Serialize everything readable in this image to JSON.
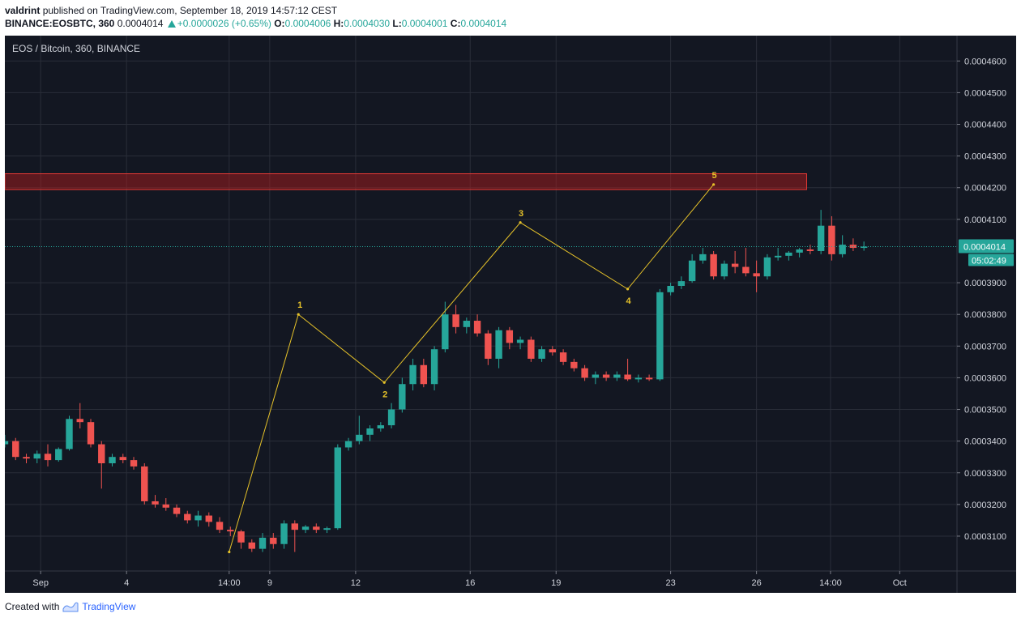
{
  "header": {
    "author": "valdrint",
    "published_text": "published on TradingView.com, September 18, 2019 14:57:12 CEST"
  },
  "quote": {
    "symbol": "BINANCE:EOSBTC, 360",
    "last": "0.0004014",
    "change": "+0.0000026 (+0.65%)",
    "o_label": "O:",
    "o_value": "0.0004006",
    "h_label": "H:",
    "h_value": "0.0004030",
    "l_label": "L:",
    "l_value": "0.0004001",
    "c_label": "C:",
    "c_value": "0.0004014"
  },
  "footer": {
    "created_with": "Created with",
    "brand": "TradingView"
  },
  "colors": {
    "background": "#131722",
    "grid": "#2a2e39",
    "up": "#26a69a",
    "down": "#ef5350",
    "wave": "#e6c229",
    "zone": "#b71c1c"
  },
  "chart_data": {
    "type": "candlestick",
    "title": "EOS / Bitcoin, 360, BINANCE",
    "x_ticks": [
      "Sep",
      "4",
      "14:00",
      "9",
      "12",
      "16",
      "19",
      "23",
      "26",
      "14:00",
      "Oct"
    ],
    "y_ticks": [
      "0.0004600",
      "0.0004500",
      "0.0004400",
      "0.0004300",
      "0.0004200",
      "0.0004100",
      "0.0003900",
      "0.0003800",
      "0.0003700",
      "0.0003600",
      "0.0003500",
      "0.0003400",
      "0.0003300",
      "0.0003200",
      "0.0003100"
    ],
    "ylim": [
      0.000299,
      0.000468
    ],
    "last_price": {
      "value": 0.0004014,
      "label": "0.0004014",
      "countdown": "05:02:49"
    },
    "resistance_zone": {
      "low": 0.0004194,
      "high": 0.0004244
    },
    "grid": true,
    "candles": [
      [
        0.000339,
        0.000342,
        0.000338,
        0.00034
      ],
      [
        0.00034,
        0.000341,
        0.000334,
        0.000335
      ],
      [
        0.000335,
        0.000336,
        0.000333,
        0.0003345
      ],
      [
        0.0003345,
        0.000337,
        0.000333,
        0.000336
      ],
      [
        0.000336,
        0.000339,
        0.000332,
        0.000334
      ],
      [
        0.000334,
        0.000338,
        0.0003335,
        0.0003375
      ],
      [
        0.0003375,
        0.000348,
        0.000337,
        0.000347
      ],
      [
        0.000347,
        0.000352,
        0.000344,
        0.000346
      ],
      [
        0.000346,
        0.000347,
        0.000338,
        0.000339
      ],
      [
        0.000339,
        0.00034,
        0.000325,
        0.000333
      ],
      [
        0.000333,
        0.000336,
        0.000332,
        0.000335
      ],
      [
        0.000335,
        0.000336,
        0.000333,
        0.000334
      ],
      [
        0.000334,
        0.000335,
        0.000331,
        0.000332
      ],
      [
        0.000332,
        0.000333,
        0.00032,
        0.000321
      ],
      [
        0.000321,
        0.000323,
        0.000319,
        0.00032
      ],
      [
        0.00032,
        0.000322,
        0.000318,
        0.000319
      ],
      [
        0.000319,
        0.00032,
        0.000316,
        0.000317
      ],
      [
        0.000317,
        0.000318,
        0.000314,
        0.000315
      ],
      [
        0.000315,
        0.000318,
        0.000313,
        0.0003165
      ],
      [
        0.0003165,
        0.0003175,
        0.000313,
        0.0003145
      ],
      [
        0.0003145,
        0.000316,
        0.000311,
        0.000312
      ],
      [
        0.000312,
        0.000313,
        0.00031,
        0.0003115
      ],
      [
        0.0003115,
        0.000312,
        0.000306,
        0.000308
      ],
      [
        0.000308,
        0.000309,
        0.000305,
        0.000306
      ],
      [
        0.000306,
        0.000311,
        0.000305,
        0.0003095
      ],
      [
        0.0003095,
        0.000311,
        0.000306,
        0.0003075
      ],
      [
        0.0003075,
        0.000315,
        0.000306,
        0.000314
      ],
      [
        0.000314,
        0.000315,
        0.000305,
        0.000312
      ],
      [
        0.000312,
        0.0003135,
        0.000311,
        0.000313
      ],
      [
        0.000313,
        0.000314,
        0.000311,
        0.000312
      ],
      [
        0.000312,
        0.000313,
        0.000311,
        0.0003125
      ],
      [
        0.0003125,
        0.000339,
        0.000312,
        0.000338
      ],
      [
        0.000338,
        0.000341,
        0.000337,
        0.00034
      ],
      [
        0.00034,
        0.000348,
        0.000339,
        0.000342
      ],
      [
        0.000342,
        0.000345,
        0.00034,
        0.000344
      ],
      [
        0.000344,
        0.000346,
        0.000343,
        0.000345
      ],
      [
        0.000345,
        0.000352,
        0.000344,
        0.00035
      ],
      [
        0.00035,
        0.00036,
        0.000349,
        0.000358
      ],
      [
        0.000358,
        0.000366,
        0.000356,
        0.000364
      ],
      [
        0.000364,
        0.000366,
        0.000357,
        0.000358
      ],
      [
        0.000358,
        0.00037,
        0.000356,
        0.000369
      ],
      [
        0.000369,
        0.000384,
        0.000368,
        0.00038
      ],
      [
        0.00038,
        0.000383,
        0.000374,
        0.000376
      ],
      [
        0.000376,
        0.000379,
        0.000374,
        0.000378
      ],
      [
        0.000378,
        0.00038,
        0.000373,
        0.000374
      ],
      [
        0.000374,
        0.000375,
        0.000364,
        0.000366
      ],
      [
        0.000366,
        0.000376,
        0.000363,
        0.000375
      ],
      [
        0.000375,
        0.000376,
        0.000369,
        0.000371
      ],
      [
        0.000371,
        0.000373,
        0.000369,
        0.000372
      ],
      [
        0.000372,
        0.000373,
        0.000365,
        0.000366
      ],
      [
        0.000366,
        0.00037,
        0.000365,
        0.000369
      ],
      [
        0.000369,
        0.00037,
        0.000367,
        0.000368
      ],
      [
        0.000368,
        0.000369,
        0.000364,
        0.000365
      ],
      [
        0.000365,
        0.000366,
        0.000362,
        0.000363
      ],
      [
        0.000363,
        0.000364,
        0.000359,
        0.00036
      ],
      [
        0.00036,
        0.000362,
        0.000358,
        0.000361
      ],
      [
        0.000361,
        0.000362,
        0.000359,
        0.00036
      ],
      [
        0.00036,
        0.000362,
        0.000359,
        0.000361
      ],
      [
        0.000361,
        0.000366,
        0.000359,
        0.0003595
      ],
      [
        0.0003595,
        0.000361,
        0.0003585,
        0.00036
      ],
      [
        0.00036,
        0.000361,
        0.000359,
        0.0003595
      ],
      [
        0.0003595,
        0.000388,
        0.000359,
        0.000387
      ],
      [
        0.000387,
        0.00039,
        0.000386,
        0.000389
      ],
      [
        0.000389,
        0.000392,
        0.000388,
        0.0003905
      ],
      [
        0.0003905,
        0.000399,
        0.00039,
        0.000397
      ],
      [
        0.000397,
        0.000401,
        0.000396,
        0.000399
      ],
      [
        0.000399,
        0.0004,
        0.000391,
        0.000392
      ],
      [
        0.000392,
        0.000397,
        0.000391,
        0.000396
      ],
      [
        0.000396,
        0.0004,
        0.000393,
        0.000395
      ],
      [
        0.000395,
        0.000401,
        0.000392,
        0.000393
      ],
      [
        0.000393,
        0.000397,
        0.000387,
        0.000392
      ],
      [
        0.000392,
        0.000399,
        0.000391,
        0.000398
      ],
      [
        0.000398,
        0.000401,
        0.000397,
        0.0003985
      ],
      [
        0.0003985,
        0.0004,
        0.000397,
        0.0003995
      ],
      [
        0.0003995,
        0.000401,
        0.000398,
        0.0004005
      ],
      [
        0.0004005,
        0.000402,
        0.000399,
        0.0004
      ],
      [
        0.0004,
        0.000413,
        0.000399,
        0.000408
      ],
      [
        0.000408,
        0.000411,
        0.000397,
        0.000399
      ],
      [
        0.000399,
        0.000405,
        0.000398,
        0.000402
      ],
      [
        0.000402,
        0.000404,
        0.0004,
        0.000401
      ],
      [
        0.000401,
        0.000403,
        0.0004001,
        0.0004014
      ]
    ],
    "elliott_wave": {
      "labels": [
        "1",
        "2",
        "3",
        "4",
        "5"
      ],
      "points": [
        {
          "date": "2019-09-07 14:00",
          "price": 0.000305
        },
        {
          "date": "2019-09-10",
          "price": 0.00038,
          "label": "1"
        },
        {
          "date": "2019-09-13",
          "price": 0.0003585,
          "label": "2"
        },
        {
          "date": "2019-09-17 18:00",
          "price": 0.000409,
          "label": "3"
        },
        {
          "date": "2019-09-21 12:00",
          "price": 0.000388,
          "label": "4"
        },
        {
          "date": "2019-09-24 12:00",
          "price": 0.000421,
          "label": "5"
        }
      ]
    }
  }
}
